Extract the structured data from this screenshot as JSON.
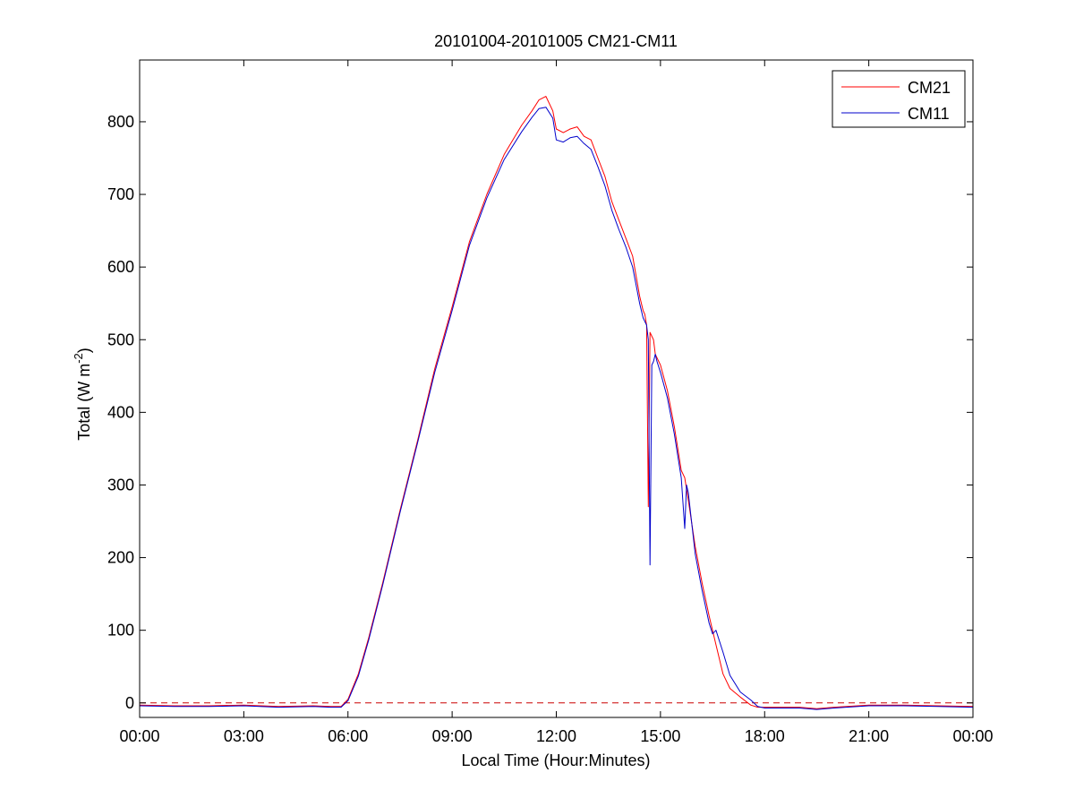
{
  "chart_data": {
    "type": "line",
    "title": "20101004-20101005 CM21-CM11",
    "xlabel": "Local Time (Hour:Minutes)",
    "ylabel_main": "Total (W m",
    "ylabel_sup": "-2",
    "ylabel_end": ")",
    "xlim": [
      0,
      24
    ],
    "ylim": [
      -20,
      885
    ],
    "x_ticks": [
      0,
      3,
      6,
      9,
      12,
      15,
      18,
      21,
      24
    ],
    "x_tick_labels": [
      "00:00",
      "03:00",
      "06:00",
      "09:00",
      "12:00",
      "15:00",
      "18:00",
      "21:00",
      "00:00"
    ],
    "y_ticks": [
      0,
      100,
      200,
      300,
      400,
      500,
      600,
      700,
      800
    ],
    "y_tick_labels": [
      "0",
      "100",
      "200",
      "300",
      "400",
      "500",
      "600",
      "700",
      "800"
    ],
    "reference_line": {
      "y": 0,
      "style": "dashed",
      "color": "#cc0000"
    },
    "legend_position": "top-right",
    "series": [
      {
        "name": "CM21",
        "color": "#ff0000",
        "x": [
          0,
          1,
          2,
          3,
          4,
          5,
          5.5,
          5.8,
          6.0,
          6.3,
          6.6,
          7.0,
          7.5,
          8.0,
          8.5,
          9.0,
          9.5,
          10.0,
          10.5,
          11.0,
          11.3,
          11.5,
          11.7,
          11.9,
          12.0,
          12.2,
          12.4,
          12.6,
          12.8,
          13.0,
          13.2,
          13.4,
          13.6,
          13.8,
          14.0,
          14.2,
          14.4,
          14.5,
          14.55,
          14.6,
          14.65,
          14.7,
          14.8,
          14.85,
          14.9,
          15.0,
          15.2,
          15.4,
          15.6,
          15.7,
          15.8,
          16.0,
          16.2,
          16.4,
          16.6,
          16.8,
          17.0,
          17.3,
          17.6,
          17.8,
          18.0,
          19.0,
          19.5,
          20.0,
          21.0,
          22.0,
          23.0,
          24.0
        ],
        "values": [
          -3,
          -4,
          -4,
          -3,
          -5,
          -4,
          -5,
          -5,
          5,
          40,
          90,
          165,
          265,
          360,
          460,
          545,
          635,
          700,
          755,
          795,
          815,
          830,
          835,
          815,
          790,
          785,
          790,
          793,
          780,
          775,
          750,
          725,
          690,
          665,
          640,
          615,
          560,
          540,
          535,
          520,
          270,
          510,
          500,
          480,
          475,
          465,
          430,
          380,
          320,
          310,
          280,
          215,
          165,
          120,
          80,
          40,
          20,
          8,
          -3,
          -6,
          -6,
          -6,
          -8,
          -6,
          -3,
          -3,
          -4,
          -5
        ]
      },
      {
        "name": "CM11",
        "color": "#0000cc",
        "x": [
          0,
          1,
          2,
          3,
          4,
          5,
          5.5,
          5.8,
          6.0,
          6.3,
          6.6,
          7.0,
          7.5,
          8.0,
          8.5,
          9.0,
          9.5,
          10.0,
          10.5,
          11.0,
          11.3,
          11.5,
          11.7,
          11.9,
          12.0,
          12.2,
          12.4,
          12.6,
          12.8,
          13.0,
          13.2,
          13.4,
          13.6,
          13.8,
          14.0,
          14.2,
          14.4,
          14.5,
          14.6,
          14.65,
          14.7,
          14.75,
          14.8,
          14.85,
          14.9,
          15.0,
          15.2,
          15.4,
          15.6,
          15.7,
          15.75,
          15.8,
          16.0,
          16.2,
          16.4,
          16.5,
          16.6,
          16.8,
          17.0,
          17.3,
          17.6,
          17.8,
          18.0,
          19.0,
          19.5,
          20.0,
          21.0,
          22.0,
          23.0,
          24.0
        ],
        "values": [
          -4,
          -5,
          -5,
          -4,
          -6,
          -5,
          -6,
          -6,
          3,
          37,
          87,
          162,
          262,
          357,
          455,
          540,
          630,
          695,
          748,
          786,
          806,
          818,
          820,
          805,
          775,
          772,
          778,
          780,
          770,
          762,
          738,
          712,
          678,
          652,
          628,
          600,
          550,
          530,
          520,
          500,
          190,
          465,
          470,
          480,
          470,
          455,
          420,
          370,
          310,
          240,
          300,
          290,
          205,
          155,
          110,
          95,
          100,
          70,
          38,
          15,
          4,
          -5,
          -7,
          -7,
          -9,
          -7,
          -4,
          -4,
          -5,
          -6
        ]
      }
    ]
  }
}
